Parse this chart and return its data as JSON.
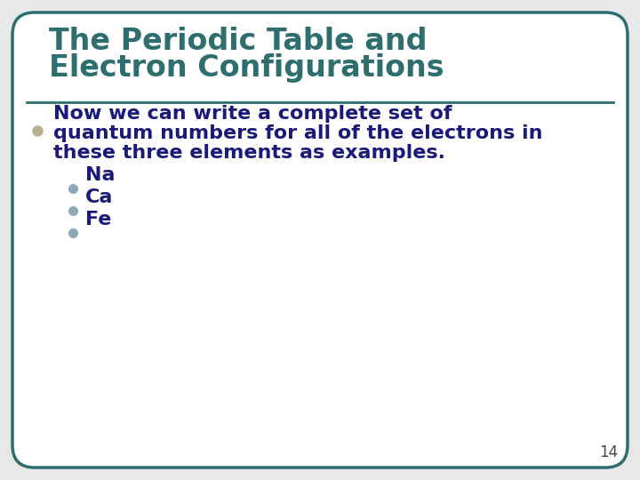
{
  "title_line1": "The Periodic Table and",
  "title_line2": "Electron Configurations",
  "title_color": "#2E6E6E",
  "separator_color": "#2E6E6E",
  "bullet_color": "#B8B090",
  "main_bullet_text_line1": "Now we can write a complete set of",
  "main_bullet_text_line2": "quantum numbers for all of the electrons in",
  "main_bullet_text_line3": "these three elements as examples.",
  "main_text_color": "#1A1A7A",
  "sub_bullet_color_na": "#8AAABB",
  "sub_bullet_color_ca": "#8AAABB",
  "sub_bullet_color_fe": "#8AAABB",
  "sub_items": [
    "Na",
    "Ca",
    "Fe"
  ],
  "sub_text_color": "#1A1A7A",
  "page_number": "14",
  "page_num_color": "#444444",
  "bg_color": "#FFFFFF",
  "border_color": "#2E6E6E",
  "slide_bg": "#E8E8E8"
}
